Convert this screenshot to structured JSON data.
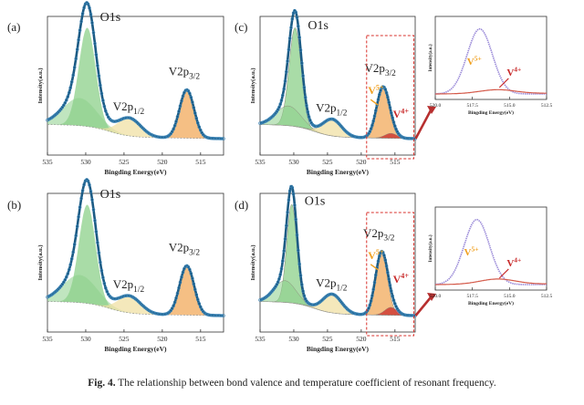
{
  "caption": {
    "label": "Fig. 4.",
    "text": "The relationship between bond valence and temperature coefficient of resonant frequency."
  },
  "colors": {
    "curve": "#1c5b84",
    "ring": "#3d86b8",
    "o1s_fill": "#8cd08a",
    "v2p12_fill": "#f0e0a4",
    "v2p32_fill": "#f2a95b",
    "highlight_box": "#d9312b",
    "arrow": "#b72f2f",
    "v5_label": "#f0a020",
    "v4_label": "#c82a2a",
    "inset_v5_curve": "#9a8ad8",
    "inset_v4_curve": "#d45a4a"
  },
  "chart_data": [
    {
      "panel": "(a)",
      "type": "line",
      "title": "",
      "xlabel": "Bingding Energy(eV)",
      "ylabel": "Intensity(a.u.)",
      "xlim": [
        535,
        512
      ],
      "xticks": [
        535,
        530,
        525,
        520,
        515
      ],
      "series": [
        {
          "name": "O1s",
          "center": 529.8,
          "height": 1.0,
          "width": 1.1
        },
        {
          "name": "O1s shoulder",
          "center": 530.8,
          "height": 0.28,
          "width": 2.2
        },
        {
          "name": "V2p1/2",
          "center": 524.3,
          "height": 0.18,
          "width": 1.5
        },
        {
          "name": "V2p3/2",
          "center": 516.8,
          "height": 0.49,
          "width": 0.95
        }
      ],
      "annotations": {
        "o1s": "O1s",
        "v12": "V2p1/2",
        "v32": "V2p3/2"
      }
    },
    {
      "panel": "(b)",
      "type": "line",
      "title": "",
      "xlabel": "Bingding Energy(eV)",
      "ylabel": "Intensity(a.u.)",
      "xlim": [
        535,
        512
      ],
      "xticks": [
        535,
        530,
        525,
        520,
        515
      ],
      "series": [
        {
          "name": "O1s",
          "center": 529.8,
          "height": 1.0,
          "width": 1.1
        },
        {
          "name": "O1s shoulder",
          "center": 530.8,
          "height": 0.28,
          "width": 2.2
        },
        {
          "name": "V2p1/2",
          "center": 524.3,
          "height": 0.17,
          "width": 1.5
        },
        {
          "name": "V2p3/2",
          "center": 516.8,
          "height": 0.5,
          "width": 0.95
        }
      ],
      "annotations": {
        "o1s": "O1s",
        "v12": "V2p1/2",
        "v32": "V2p3/2"
      }
    },
    {
      "panel": "(c)",
      "type": "line",
      "title": "",
      "xlabel": "Bingding Energy(eV)",
      "ylabel": "Intensity(a.u.)",
      "xlim": [
        535,
        512
      ],
      "xticks": [
        535,
        530,
        525,
        520,
        515
      ],
      "series": [
        {
          "name": "O1s",
          "center": 529.8,
          "height": 1.0,
          "width": 0.9
        },
        {
          "name": "O1s shoulder",
          "center": 530.8,
          "height": 0.2,
          "width": 1.8
        },
        {
          "name": "V2p1/2",
          "center": 524.3,
          "height": 0.17,
          "width": 1.4
        },
        {
          "name": "V2p3/2 (V5+)",
          "center": 516.8,
          "height": 0.5,
          "width": 0.95
        },
        {
          "name": "V4+",
          "center": 515.6,
          "height": 0.05,
          "width": 0.9
        }
      ],
      "annotations": {
        "o1s": "O1s",
        "v12": "V2p1/2",
        "v32": "V2p3/2",
        "v5": "V5+",
        "v4": "V4+"
      }
    },
    {
      "panel": "(d)",
      "type": "line",
      "title": "",
      "xlabel": "Bingding Energy(eV)",
      "ylabel": "Intensity(a.u.)",
      "xlim": [
        535,
        512
      ],
      "xticks": [
        535,
        530,
        525,
        520,
        515
      ],
      "series": [
        {
          "name": "O1s",
          "center": 530.3,
          "height": 1.0,
          "width": 0.75
        },
        {
          "name": "O1s shoulder",
          "center": 531.3,
          "height": 0.22,
          "width": 1.6
        },
        {
          "name": "V2p1/2",
          "center": 524.3,
          "height": 0.19,
          "width": 1.4
        },
        {
          "name": "V2p3/2 (V5+)",
          "center": 517.0,
          "height": 0.62,
          "width": 0.9
        },
        {
          "name": "V4+",
          "center": 515.6,
          "height": 0.08,
          "width": 0.9
        }
      ],
      "annotations": {
        "o1s": "O1s",
        "v12": "V2p1/2",
        "v32": "V2p3/2",
        "v5": "V5+",
        "v4": "V4+"
      }
    },
    {
      "panel": "inset-c",
      "type": "line",
      "xlabel": "Bingding Energy(eV)",
      "ylabel": "Intensity(a.u.)",
      "xlim": [
        520,
        512.5
      ],
      "xticks": [
        520.0,
        517.5,
        515.0,
        512.5
      ],
      "series": [
        {
          "name": "V5+",
          "center": 517.0,
          "height": 1.0,
          "width": 0.85
        },
        {
          "name": "V4+",
          "center": 515.8,
          "height": 0.06,
          "width": 1.2
        }
      ],
      "annotations": {
        "v5": "V5+",
        "v4": "V4+"
      }
    },
    {
      "panel": "inset-d",
      "type": "line",
      "xlabel": "Bingding Energy(eV)",
      "ylabel": "Intensity(a.u.)",
      "xlim": [
        520,
        512.5
      ],
      "xticks": [
        520.0,
        517.5,
        515.0,
        512.5
      ],
      "series": [
        {
          "name": "V5+",
          "center": 517.2,
          "height": 1.0,
          "width": 0.85
        },
        {
          "name": "V4+",
          "center": 515.8,
          "height": 0.08,
          "width": 1.2
        }
      ],
      "annotations": {
        "v5": "V5+",
        "v4": "V4+"
      }
    }
  ]
}
